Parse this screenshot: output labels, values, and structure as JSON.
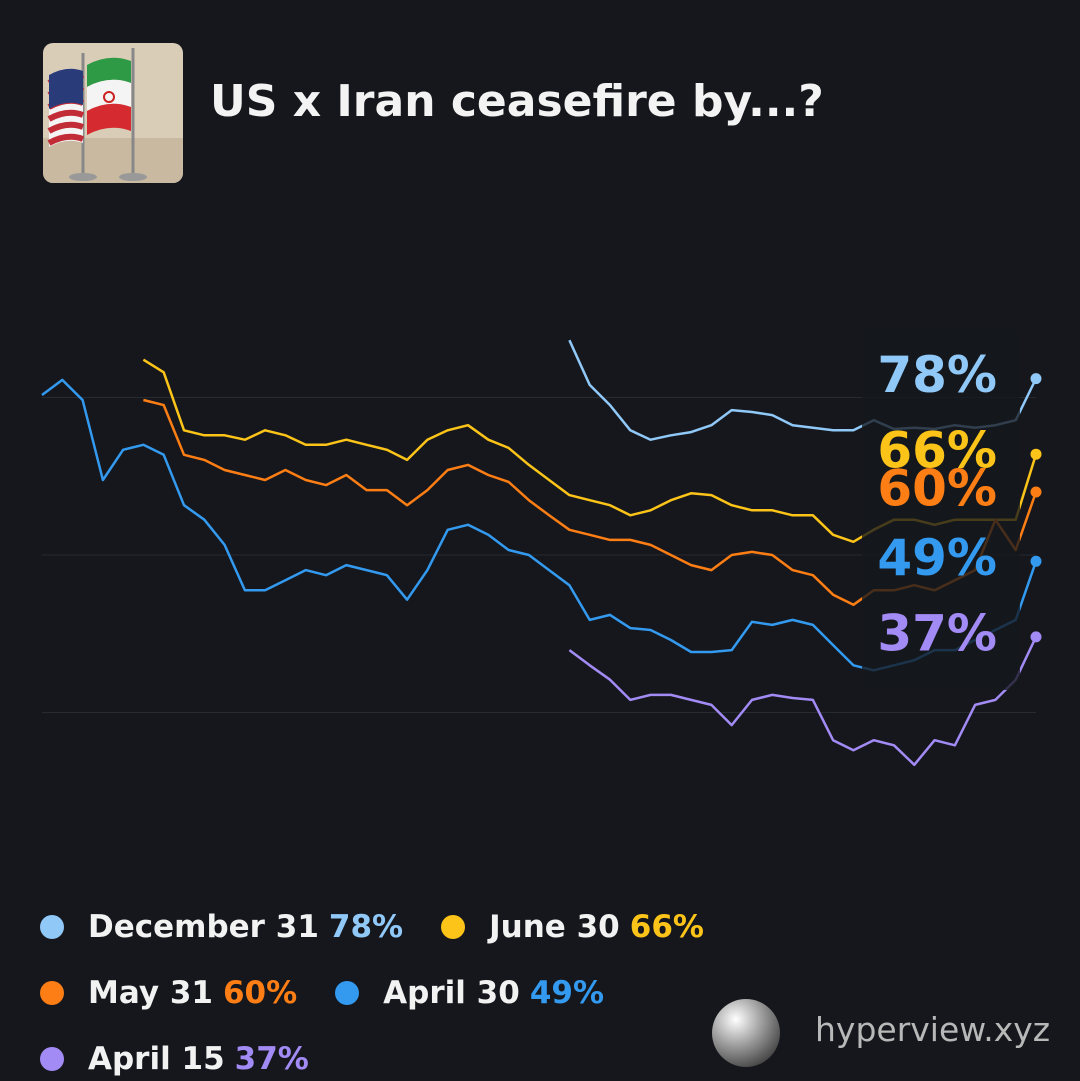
{
  "chart_data": {
    "type": "line",
    "title": "US x Iran ceasefire by...?",
    "ylim": [
      10,
      90
    ],
    "yticks": [
      25,
      50,
      75
    ],
    "grid": true,
    "series": [
      {
        "name": "December 31",
        "color": "#90c8f8",
        "value_label": "78%",
        "values": [
          null,
          null,
          null,
          null,
          null,
          null,
          null,
          null,
          null,
          null,
          null,
          null,
          null,
          null,
          null,
          null,
          null,
          null,
          null,
          null,
          null,
          null,
          null,
          null,
          null,
          null,
          84.1,
          77,
          73.8,
          69.8,
          68.3,
          69,
          69.5,
          70.6,
          73,
          72.7,
          72.2,
          70.6,
          70.2,
          69.8,
          69.8,
          71.4,
          70,
          70.2,
          70,
          70.6,
          70.2,
          70.6,
          71.4,
          78
        ]
      },
      {
        "name": "June 30",
        "color": "#fcc419",
        "value_label": "66%",
        "values": [
          null,
          null,
          null,
          null,
          null,
          81,
          79,
          69.8,
          69,
          69,
          68.3,
          69.8,
          69,
          67.5,
          67.5,
          68.3,
          67.5,
          66.7,
          65.1,
          68.3,
          69.8,
          70.6,
          68.3,
          67,
          64.3,
          61.9,
          59.5,
          58.7,
          57.9,
          56.3,
          57.1,
          58.7,
          59.8,
          59.5,
          57.9,
          57.1,
          57.1,
          56.3,
          56.3,
          53.2,
          52.1,
          54,
          55.6,
          55.6,
          54.8,
          55.6,
          55.6,
          55.6,
          55.6,
          66
        ]
      },
      {
        "name": "May 31",
        "color": "#fd7e14",
        "value_label": "60%",
        "values": [
          null,
          null,
          null,
          null,
          null,
          74.6,
          73.8,
          65.9,
          65.1,
          63.5,
          62.7,
          61.9,
          63.5,
          61.9,
          61.1,
          62.7,
          60.3,
          60.3,
          57.9,
          60.3,
          63.5,
          64.3,
          62.7,
          61.6,
          58.7,
          56.3,
          54,
          53.2,
          52.4,
          52.4,
          51.6,
          50,
          48.4,
          47.6,
          50,
          50.5,
          50,
          47.6,
          46.8,
          43.7,
          42.1,
          44.4,
          44.4,
          45.2,
          44.4,
          46,
          47.6,
          55.6,
          50.8,
          60
        ]
      },
      {
        "name": "April 30",
        "color": "#339af0",
        "value_label": "49%",
        "values": [
          75.4,
          77.8,
          74.6,
          61.9,
          66.7,
          67.5,
          65.9,
          57.9,
          55.6,
          51.6,
          44.4,
          44.4,
          46,
          47.6,
          46.8,
          48.4,
          47.6,
          46.8,
          42.9,
          47.6,
          54,
          54.8,
          53.2,
          50.8,
          50,
          47.6,
          45.2,
          39.7,
          40.5,
          38.4,
          38.1,
          36.5,
          34.6,
          34.6,
          34.9,
          39.4,
          38.9,
          39.7,
          38.9,
          35.7,
          32.5,
          31.7,
          32.5,
          33.3,
          34.9,
          34.9,
          36.5,
          38.1,
          39.7,
          49
        ]
      },
      {
        "name": "April 15",
        "color": "#a38bf5",
        "value_label": "37%",
        "values": [
          null,
          null,
          null,
          null,
          null,
          null,
          null,
          null,
          null,
          null,
          null,
          null,
          null,
          null,
          null,
          null,
          null,
          null,
          null,
          null,
          null,
          null,
          null,
          null,
          null,
          null,
          34.9,
          32.5,
          30.2,
          27,
          27.8,
          27.8,
          27,
          26.2,
          23,
          27,
          27.8,
          27.3,
          27,
          20.6,
          19,
          20.6,
          19.8,
          16.7,
          20.6,
          19.8,
          26.2,
          27,
          30.2,
          37
        ]
      }
    ]
  },
  "watermark": "hyperview.xyz"
}
